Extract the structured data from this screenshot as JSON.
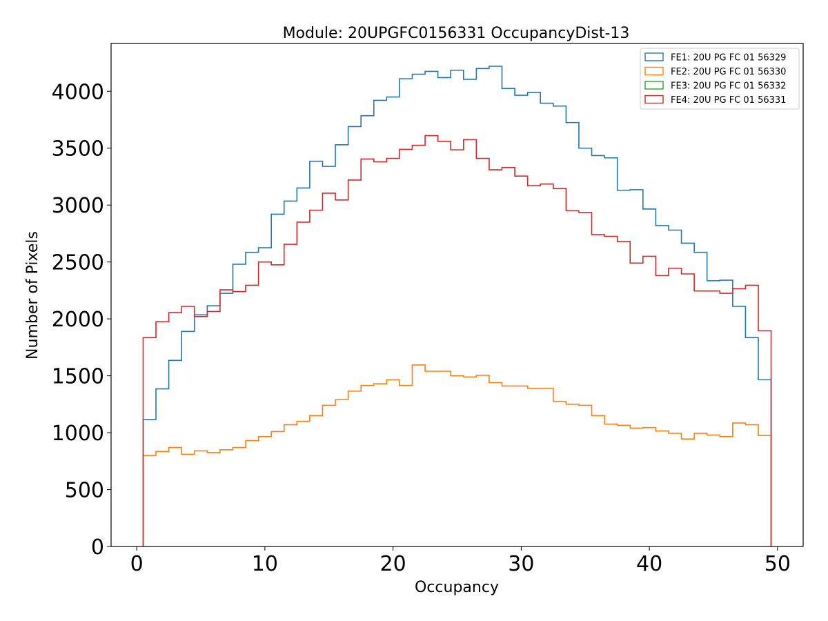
{
  "chart_data": {
    "type": "histogram-step",
    "title": "Module: 20UPGFC0156331 OccupancyDist-13",
    "xlabel": "Occupancy",
    "ylabel": "Number of Pixels",
    "xlim": [
      -2,
      52
    ],
    "ylim": [
      0,
      4420
    ],
    "xticks": [
      0,
      10,
      20,
      30,
      40,
      50
    ],
    "yticks": [
      0,
      500,
      1000,
      1500,
      2000,
      2500,
      3000,
      3500,
      4000
    ],
    "bin_start": 0.5,
    "bin_width": 1,
    "legend_position": "top-right",
    "series": [
      {
        "name": "FE1: 20U PG FC 01 56329",
        "color": "#1f77b4",
        "values": [
          1115,
          1385,
          1635,
          1890,
          2035,
          2115,
          2225,
          2480,
          2585,
          2625,
          2920,
          3035,
          3150,
          3385,
          3340,
          3530,
          3690,
          3785,
          3920,
          3950,
          4110,
          4150,
          4175,
          4120,
          4185,
          4105,
          4200,
          4220,
          4025,
          3965,
          3990,
          3895,
          3870,
          3725,
          3500,
          3435,
          3415,
          3130,
          3135,
          2965,
          2820,
          2780,
          2665,
          2585,
          2335,
          2340,
          2110,
          1835,
          1465
        ]
      },
      {
        "name": "FE2: 20U PG FC 01 56330",
        "color": "#ff7f0e",
        "values": [
          800,
          835,
          870,
          810,
          840,
          825,
          850,
          870,
          930,
          965,
          1010,
          1070,
          1100,
          1150,
          1240,
          1290,
          1365,
          1415,
          1430,
          1465,
          1415,
          1595,
          1540,
          1540,
          1500,
          1490,
          1505,
          1440,
          1410,
          1410,
          1390,
          1390,
          1275,
          1250,
          1240,
          1150,
          1075,
          1065,
          1040,
          1045,
          1015,
          995,
          945,
          995,
          980,
          965,
          1085,
          1070,
          975
        ]
      },
      {
        "name": "FE3: 20U PG FC 01 56332",
        "color": "#2ca02c",
        "values": []
      },
      {
        "name": "FE4: 20U PG FC 01 56331",
        "color": "#d62728",
        "values": [
          1835,
          1975,
          2055,
          2110,
          2020,
          2065,
          2255,
          2240,
          2295,
          2500,
          2475,
          2655,
          2850,
          2955,
          3105,
          3045,
          3220,
          3405,
          3380,
          3410,
          3490,
          3525,
          3610,
          3560,
          3485,
          3575,
          3410,
          3310,
          3330,
          3255,
          3170,
          3185,
          3145,
          2950,
          2935,
          2740,
          2725,
          2680,
          2490,
          2550,
          2380,
          2445,
          2395,
          2245,
          2245,
          2225,
          2265,
          2295,
          1895
        ]
      }
    ]
  }
}
